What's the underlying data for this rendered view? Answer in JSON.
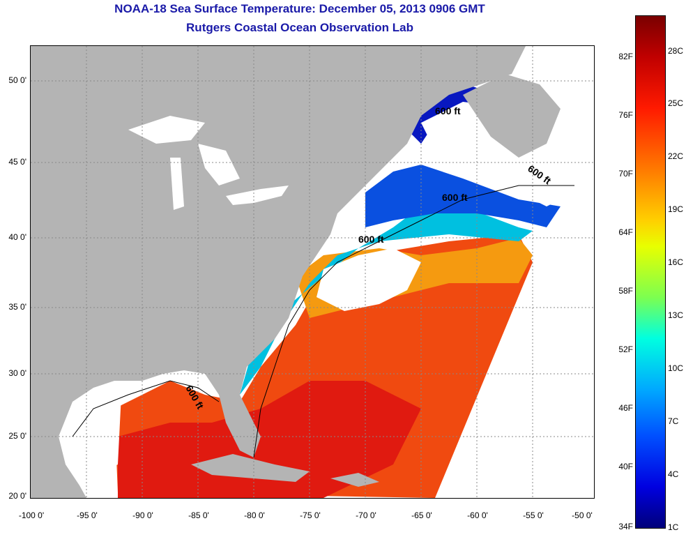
{
  "header": {
    "title": "NOAA-18 Sea Surface Temperature:  December 05, 2013 0906 GMT",
    "subtitle": "Rutgers Coastal Ocean Observation Lab"
  },
  "map": {
    "lat_ticks": [
      "50 0'",
      "45 0'",
      "40 0'",
      "35 0'",
      "30 0'",
      "25 0'",
      "20 0'"
    ],
    "lon_ticks": [
      "-100 0'",
      "-95 0'",
      "-90 0'",
      "-85 0'",
      "-80 0'",
      "-75 0'",
      "-70 0'",
      "-65 0'",
      "-60 0'",
      "-55 0'",
      "-50 0'"
    ],
    "contour_label": "600 ft",
    "colors": {
      "land": "#b4b4b4",
      "cloud": "#ffffff",
      "title": "#1a1aa8"
    }
  },
  "colorbar": {
    "f_labels": [
      "82F",
      "76F",
      "70F",
      "64F",
      "58F",
      "52F",
      "46F",
      "40F",
      "34F"
    ],
    "c_labels": [
      "28C",
      "25C",
      "22C",
      "19C",
      "16C",
      "13C",
      "10C",
      "7C",
      "4C",
      "1C"
    ]
  }
}
